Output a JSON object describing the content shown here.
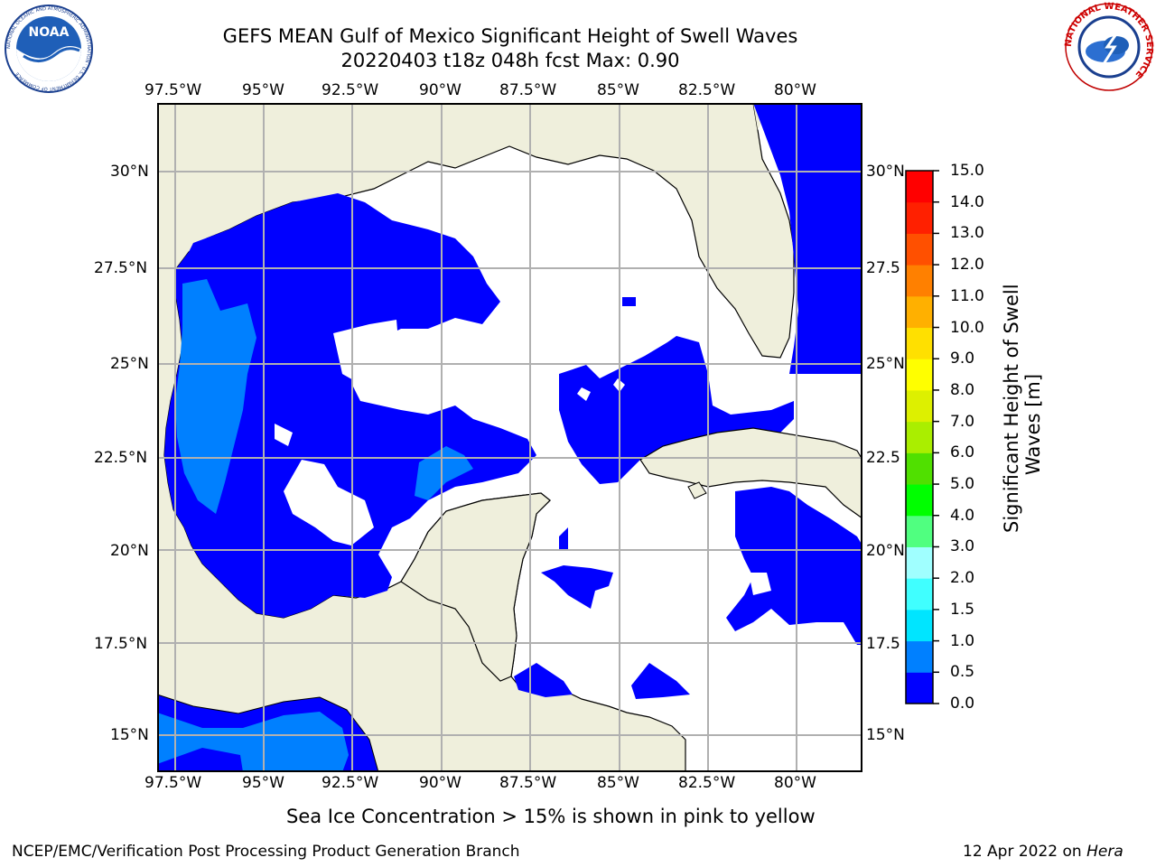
{
  "title": {
    "line1": "GEFS MEAN Gulf of Mexico Significant Height of Swell Waves",
    "line2": "20220403 t18z 048h fcst   Max: 0.90"
  },
  "logos": {
    "left": {
      "icon": "noaa-logo",
      "text": "NOAA",
      "ring_text": "NATIONAL OCEANIC AND ATMOSPHERIC ADMINISTRATION · U.S. DEPARTMENT OF COMMERCE"
    },
    "right": {
      "icon": "national-weather-service-logo",
      "ring_text": "NATIONAL WEATHER SERVICE"
    }
  },
  "map": {
    "projection": "plate-carree",
    "lon_range": [
      -98.0,
      -78.0
    ],
    "lat_range": [
      14.0,
      31.8
    ],
    "lon_ticks": [
      "97.5°W",
      "95°W",
      "92.5°W",
      "90°W",
      "87.5°W",
      "85°W",
      "82.5°W",
      "80°W"
    ],
    "lat_ticks_left": [
      "30°N",
      "27.5°N",
      "25°N",
      "22.5°N",
      "20°N",
      "17.5°N",
      "15°N"
    ],
    "lat_ticks_right": [
      "30°N",
      "27.5",
      "25°N",
      "22.5",
      "20°N",
      "17.5",
      "15°N"
    ],
    "gridlines": true,
    "colors": {
      "land": "#efefdc",
      "ocean_below_threshold": "#ffffff",
      "gridline": "#b0b0b0"
    }
  },
  "colorbar": {
    "label": "Significant Height of Swell Waves [m]",
    "label_line1": "Significant Height of Swell",
    "label_line2": "Waves [m]",
    "ticks": [
      "15.0",
      "14.0",
      "13.0",
      "12.0",
      "11.0",
      "10.0",
      "9.0",
      "8.0",
      "7.0",
      "6.0",
      "5.0",
      "4.0",
      "3.0",
      "2.0",
      "1.5",
      "1.0",
      "0.5",
      "0.0"
    ],
    "levels": [
      0.0,
      0.5,
      1.0,
      1.5,
      2.0,
      3.0,
      4.0,
      5.0,
      6.0,
      7.0,
      8.0,
      9.0,
      10.0,
      11.0,
      12.0,
      13.0,
      14.0,
      15.0
    ],
    "colors": [
      "#0000ff",
      "#0080ff",
      "#00e5ff",
      "#40ffff",
      "#a0ffff",
      "#50ff80",
      "#00ff00",
      "#50e000",
      "#aaee00",
      "#ddf000",
      "#ffff00",
      "#ffe000",
      "#ffb000",
      "#ff8000",
      "#ff5000",
      "#ff2000",
      "#ff0000"
    ]
  },
  "chart_data": {
    "type": "heatmap",
    "variable": "Significant Height of Swell Waves",
    "units": "m",
    "max_value": 0.9,
    "regions": [
      {
        "name": "western-central-gulf",
        "range": "0.0–0.5",
        "color": "#0000ff"
      },
      {
        "name": "western-gulf-nearshore",
        "range": "0.5–1.0",
        "color": "#0080ff"
      },
      {
        "name": "central-gulf-patch",
        "range": "0.5–1.0",
        "color": "#0080ff"
      },
      {
        "name": "southeast-gulf",
        "range": "0.0–0.5",
        "color": "#0000ff"
      },
      {
        "name": "atlantic-east-of-florida",
        "range": "0.0–0.5",
        "color": "#0000ff"
      },
      {
        "name": "caribbean-south-of-cuba",
        "range": "0.0–0.5",
        "color": "#0000ff"
      },
      {
        "name": "pacific-south-of-mexico",
        "range": "0.5–1.0",
        "color": "#0080ff"
      }
    ]
  },
  "footer": {
    "ice_note": "Sea Ice Concentration > 15% is shown in pink to yellow",
    "branch": "NCEP/EMC/Verification Post Processing Product Generation Branch",
    "date": "12 Apr 2022 on",
    "host": "Hera"
  }
}
